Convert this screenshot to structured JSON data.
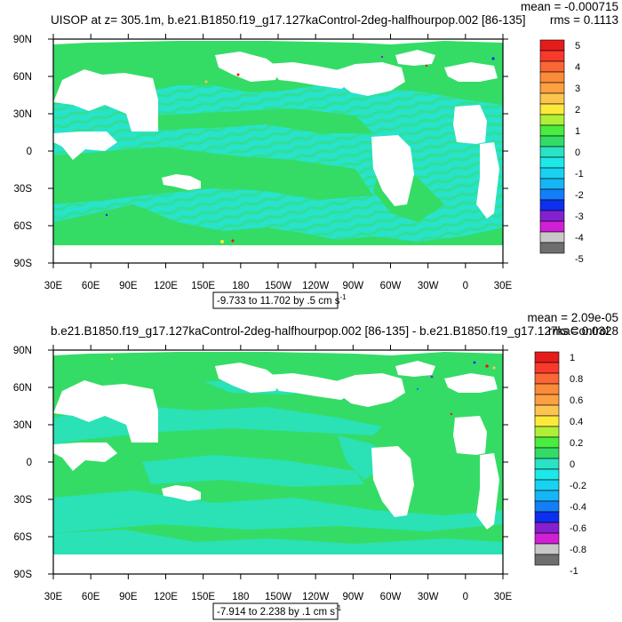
{
  "chart_data": [
    {
      "type": "heatmap",
      "title": "UISOP at z= 305.1m, b.e21.B1850.f19_g17.127kaControl-2deg-halfhourpop.002 [86-135]",
      "stats": [
        "mean = -0.000715",
        "rms = 0.1113"
      ],
      "x_ticks": [
        "30E",
        "60E",
        "90E",
        "120E",
        "150E",
        "180",
        "150W",
        "120W",
        "90W",
        "60W",
        "30W",
        "0",
        "30E"
      ],
      "y_ticks": [
        "90N",
        "60N",
        "30N",
        "0",
        "30S",
        "60S",
        "90S"
      ],
      "range_label": "-9.733 to 11.702 by .5 cm s",
      "range_unit_exp": "-1",
      "colorbar": {
        "colors": [
          "#e51c1c",
          "#f8392b",
          "#fa6634",
          "#fb8a3a",
          "#fda041",
          "#fdc550",
          "#fde93a",
          "#b0ef37",
          "#49ec40",
          "#34dc66",
          "#2ae2c4",
          "#1de8e8",
          "#18d2f0",
          "#16b5f6",
          "#147ef8",
          "#0d2ff0",
          "#8420cf",
          "#d020d6",
          "#c8c8c8",
          "#6e6e6e"
        ],
        "labels": [
          "5",
          "4",
          "3",
          "2",
          "1",
          "0",
          "-1",
          "-2",
          "-3",
          "-4",
          "-5"
        ],
        "label_every": 2
      }
    },
    {
      "type": "heatmap",
      "title": "b.e21.B1850.f19_g17.127kaControl-2deg-halfhourpop.002 [86-135] - b.e21.B1850.f19_g17.127kaControl",
      "stats": [
        "mean = 2.09e-05",
        "rms = 0.0328"
      ],
      "x_ticks": [
        "30E",
        "60E",
        "90E",
        "120E",
        "150E",
        "180",
        "150W",
        "120W",
        "90W",
        "60W",
        "30W",
        "0",
        "30E"
      ],
      "y_ticks": [
        "90N",
        "60N",
        "30N",
        "0",
        "30S",
        "60S",
        "90S"
      ],
      "range_label": "-7.914 to 2.238 by .1 cm s",
      "range_unit_exp": "-1",
      "colorbar": {
        "colors": [
          "#e51c1c",
          "#f8392b",
          "#fa6634",
          "#fb8a3a",
          "#fda041",
          "#fdc550",
          "#fde93a",
          "#b0ef37",
          "#49ec40",
          "#34dc66",
          "#2ae2c4",
          "#1de8e8",
          "#18d2f0",
          "#16b5f6",
          "#147ef8",
          "#0d2ff0",
          "#8420cf",
          "#d020d6",
          "#c8c8c8",
          "#6e6e6e"
        ],
        "labels": [
          "1",
          "0.8",
          "0.6",
          "0.4",
          "0.2",
          "0",
          "-0.2",
          "-0.4",
          "-0.6",
          "-0.8",
          "-1"
        ],
        "label_every": 2
      }
    }
  ]
}
